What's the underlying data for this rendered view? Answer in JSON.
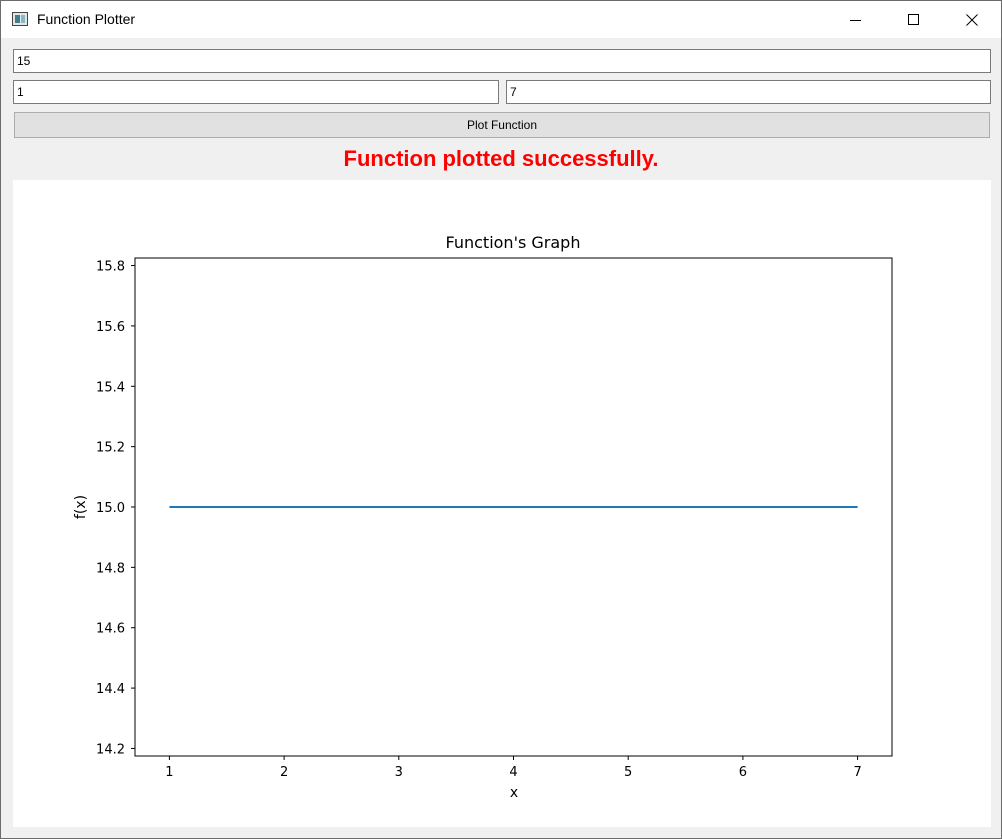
{
  "window": {
    "title": "Function Plotter"
  },
  "inputs": {
    "function_value": "15",
    "min_value": "1",
    "max_value": "7"
  },
  "buttons": {
    "plot_label": "Plot Function"
  },
  "status": {
    "message": "Function plotted successfully.",
    "color": "#ff0000"
  },
  "chart_data": {
    "type": "line",
    "title": "Function's Graph",
    "xlabel": "x",
    "ylabel": "f(x)",
    "xlim": [
      0.7,
      7.3
    ],
    "ylim": [
      14.175,
      15.825
    ],
    "xticks": [
      1,
      2,
      3,
      4,
      5,
      6,
      7
    ],
    "yticks": [
      14.2,
      14.4,
      14.6,
      14.8,
      15.0,
      15.2,
      15.4,
      15.6,
      15.8
    ],
    "ytick_labels": [
      "14.2",
      "14.4",
      "14.6",
      "14.8",
      "15.0",
      "15.2",
      "15.4",
      "15.6",
      "15.8"
    ],
    "series": [
      {
        "x": [
          1,
          7
        ],
        "y": [
          15,
          15
        ],
        "color": "#1f77b4"
      }
    ],
    "grid": false
  }
}
